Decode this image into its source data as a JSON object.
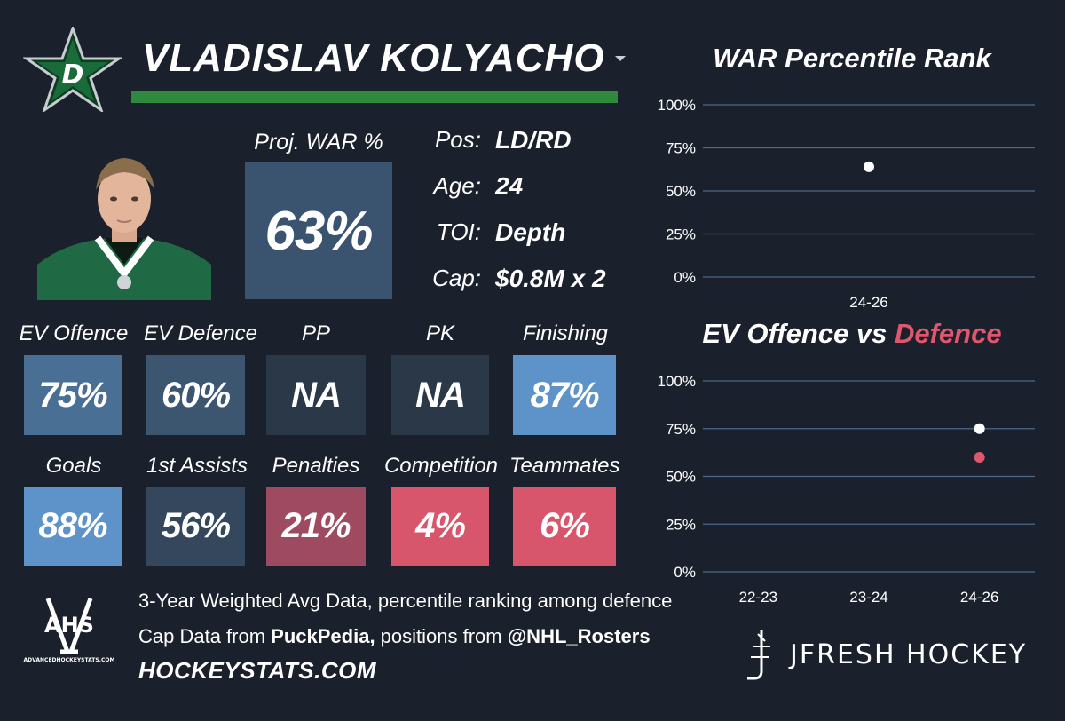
{
  "player": {
    "name": "VLADISLAV KOLYACHO",
    "team_color": "#2f8a3e"
  },
  "proj_war": {
    "label": "Proj. WAR %",
    "value": "63%"
  },
  "info": [
    {
      "key": "Pos:",
      "value": "LD/RD"
    },
    {
      "key": "Age:",
      "value": "24"
    },
    {
      "key": "TOI:",
      "value": "Depth"
    },
    {
      "key": "Cap:",
      "value": "$0.8M x 2"
    }
  ],
  "tiles_row1": [
    {
      "label": "EV Offence",
      "value": "75%",
      "color": "#4a6f95"
    },
    {
      "label": "EV Defence",
      "value": "60%",
      "color": "#3d5670"
    },
    {
      "label": "PP",
      "value": "NA",
      "color": "#2b3847"
    },
    {
      "label": "PK",
      "value": "NA",
      "color": "#2b3847"
    },
    {
      "label": "Finishing",
      "value": "87%",
      "color": "#5d93c9"
    }
  ],
  "tiles_row2": [
    {
      "label": "Goals",
      "value": "88%",
      "color": "#5d93c9"
    },
    {
      "label": "1st Assists",
      "value": "56%",
      "color": "#34475c"
    },
    {
      "label": "Penalties",
      "value": "21%",
      "color": "#9e4a60"
    },
    {
      "label": "Competition",
      "value": "4%",
      "color": "#d7566b"
    },
    {
      "label": "Teammates",
      "value": "6%",
      "color": "#d7566b"
    }
  ],
  "footer": {
    "line1": "3-Year Weighted Avg Data, percentile ranking among defence",
    "line2_prefix": "Cap Data from ",
    "line2_bold1": "PuckPedia,",
    "line2_mid": " positions from ",
    "line2_bold2": "@NHL_Rosters",
    "site": "HOCKEYSTATS.COM",
    "ahs_logo": "AHS",
    "ahs_sub": "ADVANCEDHOCKEYSTATS.COM",
    "jfresh": "JFRESH HOCKEY"
  },
  "chart_data": [
    {
      "type": "scatter",
      "title": "WAR Percentile Rank",
      "categories": [
        "24-26"
      ],
      "series": [
        {
          "values": [
            64
          ],
          "color": "#ffffff"
        }
      ],
      "yticks": [
        "100%",
        "75%",
        "50%",
        "25%",
        "0%"
      ],
      "ylim": [
        0,
        100
      ],
      "grid": true
    },
    {
      "type": "scatter",
      "title_part1": "EV Offence vs ",
      "title_part2": "Defence",
      "title_part2_color": "#e0566c",
      "categories": [
        "22-23",
        "23-24",
        "24-26"
      ],
      "series": [
        {
          "values": [
            null,
            null,
            75
          ],
          "color": "#ffffff"
        },
        {
          "values": [
            null,
            null,
            60
          ],
          "color": "#e0566c"
        }
      ],
      "yticks": [
        "100%",
        "75%",
        "50%",
        "25%",
        "0%"
      ],
      "ylim": [
        0,
        100
      ],
      "grid": true
    }
  ]
}
